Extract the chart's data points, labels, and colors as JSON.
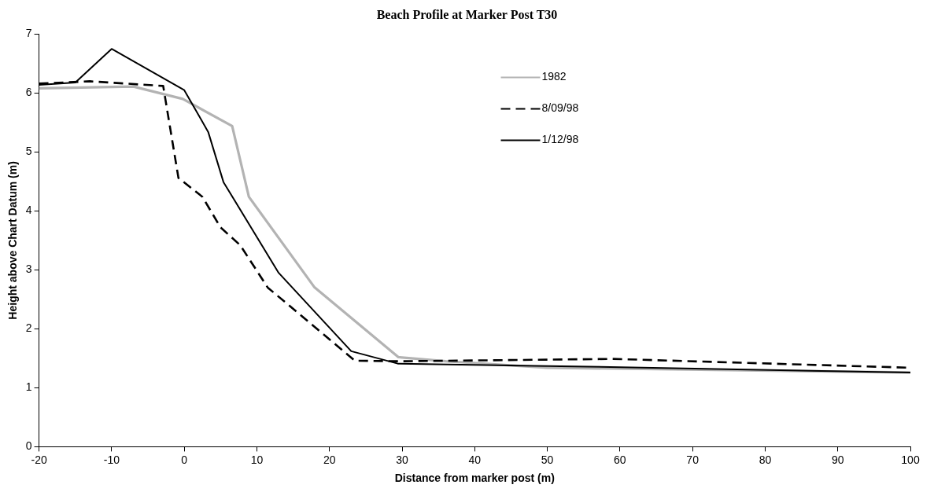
{
  "chart_data": {
    "type": "line",
    "title": "Beach Profile at Marker Post T30",
    "xlabel": "Distance from marker post (m)",
    "ylabel": "Height above Chart Datum (m)",
    "xlim": [
      -20,
      100
    ],
    "xticks": [
      -20,
      -10,
      0,
      10,
      20,
      30,
      40,
      50,
      60,
      70,
      80,
      90,
      100
    ],
    "ylim": [
      0,
      7
    ],
    "yticks": [
      0,
      1,
      2,
      3,
      4,
      5,
      6,
      7
    ],
    "grid": false,
    "legend": "top right",
    "marker": "none",
    "series": [
      {
        "name": "1982",
        "color": "#b3b3b3",
        "line_style": "solid",
        "x": [
          -20,
          -7,
          -0.2,
          6.6,
          8.9,
          17.9,
          29.5,
          36,
          50,
          100
        ],
        "values": [
          6.08,
          6.11,
          5.9,
          5.44,
          4.24,
          2.71,
          1.52,
          1.45,
          1.34,
          1.26
        ]
      },
      {
        "name": "8/09/98",
        "color": "#000000",
        "line_style": "dashed",
        "x": [
          -20,
          -13,
          -2.9,
          -0.8,
          2.5,
          5,
          7.7,
          11.5,
          23.5,
          30,
          59,
          100
        ],
        "values": [
          6.16,
          6.2,
          6.12,
          4.56,
          4.24,
          3.72,
          3.42,
          2.7,
          1.46,
          1.45,
          1.49,
          1.34
        ]
      },
      {
        "name": "1/12/98",
        "color": "#000000",
        "line_style": "solid",
        "x": [
          -20,
          -15,
          -10,
          0,
          3.3,
          5.4,
          13,
          23,
          29.4,
          50,
          100
        ],
        "values": [
          6.14,
          6.18,
          6.75,
          6.05,
          5.34,
          4.49,
          2.95,
          1.62,
          1.41,
          1.37,
          1.26
        ]
      }
    ]
  }
}
